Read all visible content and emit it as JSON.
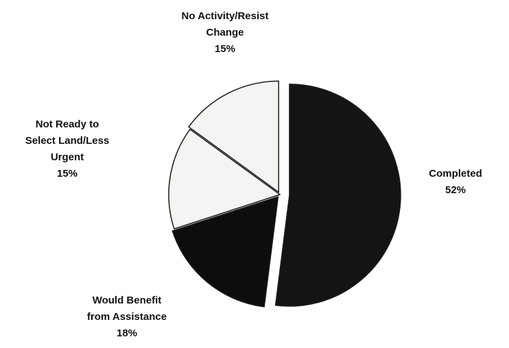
{
  "chart_data": {
    "type": "pie",
    "title": "",
    "exploded": true,
    "slices": [
      {
        "name": "Completed",
        "label_lines": [
          "Completed"
        ],
        "percent_label": "52%",
        "value": 52,
        "color": "#141414"
      },
      {
        "name": "Would Benefit from Assistance",
        "label_lines": [
          "Would Benefit",
          "from Assistance"
        ],
        "percent_label": "18%",
        "value": 18,
        "color": "#0d0d0d"
      },
      {
        "name": "Not Ready to Select Land/Less Urgent",
        "label_lines": [
          "Not Ready to",
          "Select Land/Less",
          "Urgent"
        ],
        "percent_label": "15%",
        "value": 15,
        "color": "#f4f4f2"
      },
      {
        "name": "No Activity/Resist Change",
        "label_lines": [
          "No Activity/Resist",
          "Change"
        ],
        "percent_label": "15%",
        "value": 15,
        "color": "#f4f4f2"
      }
    ]
  }
}
